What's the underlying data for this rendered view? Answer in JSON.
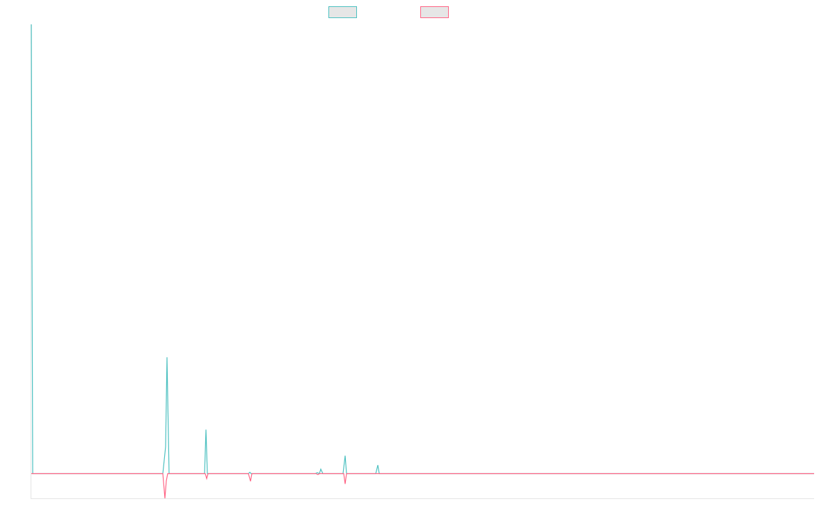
{
  "chart_data": {
    "type": "line",
    "xlim": [
      0,
      1125
    ],
    "ylim": [
      -5.5,
      100
    ],
    "series": [
      {
        "color": "#4bc0c0",
        "x": [
          0,
          2,
          189,
          193,
          195,
          198,
          249,
          251,
          253,
          312,
          314,
          316,
          408,
          411,
          414,
          416,
          419,
          448,
          451,
          453,
          495,
          498,
          500,
          1125
        ],
        "values": [
          100,
          0,
          0,
          6,
          25.9,
          0,
          0,
          9.8,
          0,
          0,
          0.3,
          0,
          0,
          0.2,
          0,
          1,
          0,
          0,
          4,
          0,
          0,
          1.9,
          0,
          0
        ]
      },
      {
        "color": "#ff6384",
        "x": [
          0,
          189,
          192,
          194,
          196,
          250,
          252,
          254,
          312,
          315,
          317,
          409,
          412,
          414,
          449,
          451,
          453,
          1125
        ],
        "values": [
          0,
          0,
          -5.5,
          -1.6,
          0,
          0,
          -1.1,
          0,
          0,
          -1.7,
          0,
          0,
          -0.2,
          0,
          0,
          -2.3,
          0,
          0
        ]
      }
    ]
  }
}
